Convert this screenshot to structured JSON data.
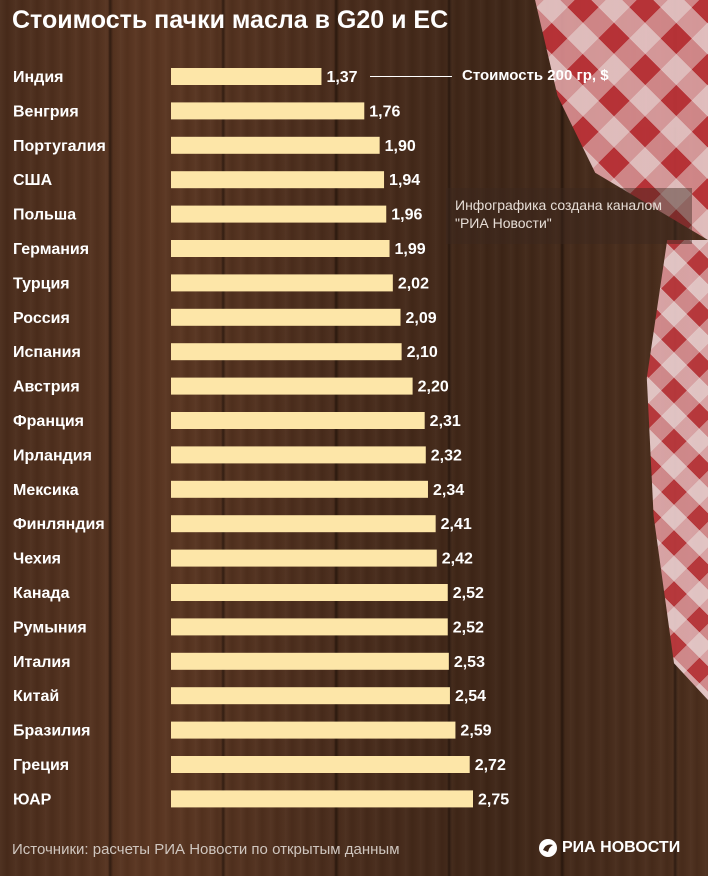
{
  "title": "Стоимость пачки масла в G20 и ЕС",
  "legend_label": "Стоимость 200 гр, $",
  "credit": {
    "line1": "Инфографика создана каналом",
    "line2": "\"РИА Новости\""
  },
  "source": "Источники: расчеты РИА Новости по открытым данным",
  "logo_text": "РИА НОВОСТИ",
  "colors": {
    "bar": "#fde6a8",
    "label": "#ffffff",
    "background": "#4a2c1b"
  },
  "chart_data": {
    "type": "bar",
    "orientation": "horizontal",
    "title": "Стоимость пачки масла в G20 и ЕС",
    "series": [
      {
        "name": "Стоимость 200 гр, $"
      }
    ],
    "categories": [
      "Индия",
      "Венгрия",
      "Португалия",
      "США",
      "Польша",
      "Германия",
      "Турция",
      "Россия",
      "Испания",
      "Австрия",
      "Франция",
      "Ирландия",
      "Мексика",
      "Финляндия",
      "Чехия",
      "Канада",
      "Румыния",
      "Италия",
      "Китай",
      "Бразилия",
      "Греция",
      "ЮАР"
    ],
    "values": [
      1.37,
      1.76,
      1.9,
      1.94,
      1.96,
      1.99,
      2.02,
      2.09,
      2.1,
      2.2,
      2.31,
      2.32,
      2.34,
      2.41,
      2.42,
      2.52,
      2.52,
      2.53,
      2.54,
      2.59,
      2.72,
      2.75
    ],
    "value_labels": [
      "1,37",
      "1,76",
      "1,90",
      "1,94",
      "1,96",
      "1,99",
      "2,02",
      "2,09",
      "2,10",
      "2,20",
      "2,31",
      "2,32",
      "2,34",
      "2,41",
      "2,42",
      "2,52",
      "2,52",
      "2,53",
      "2,54",
      "2,59",
      "2,72",
      "2,75"
    ],
    "xlim": [
      0,
      2.75
    ]
  }
}
